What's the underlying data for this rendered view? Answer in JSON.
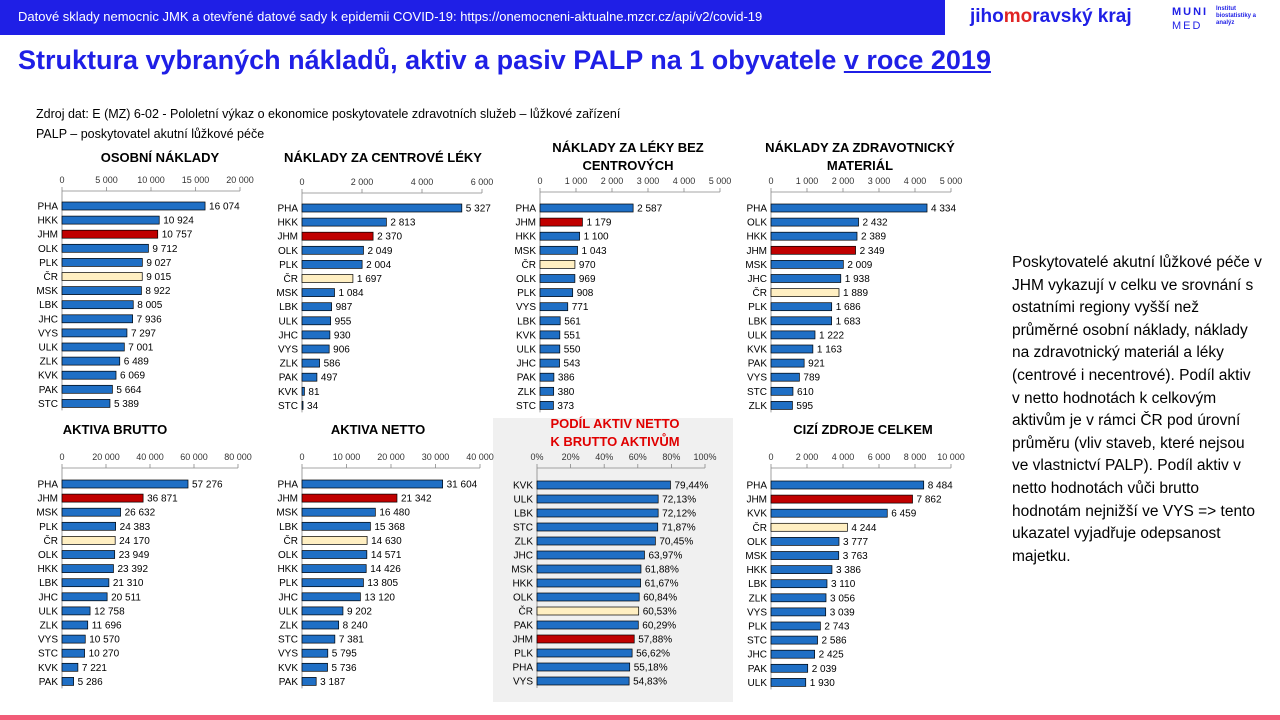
{
  "header": {
    "banner": "Datové sklady nemocnic JMK a otevřené datové sady k epidemii COVID-19: https://onemocneni-aktualne.mzcr.cz/api/v2/covid-19",
    "logo_jmk_a": "jiho",
    "logo_jmk_b": "mo",
    "logo_jmk_c": "ravský kraj",
    "logo_muni_top": "MUNI",
    "logo_muni_bottom": "MED",
    "logo_muni_note": "Institut biostatistiky a analýz"
  },
  "title": {
    "main": "Struktura vybraných nákladů, aktiv a pasiv PALP na 1 obyvatele ",
    "underlined": "v roce 2019"
  },
  "source": {
    "line1": "Zdroj dat: E (MZ) 6-02 - Pololetní výkaz o ekonomice poskytovatele zdravotních služeb – lůžkové zařízení",
    "line2": "PALP – poskytovatel akutní lůžkové péče"
  },
  "side_note": "Poskytovatelé akutní lůžkové péče v JHM vykazují v celku ve srovnání s ostatními regiony vyšší než průměrné osobní náklady, náklady na zdravotnický materiál a léky (centrové i necentrové). Podíl aktiv v netto hodnotách k celkovým aktivům je v rámci ČR pod úrovní průměru (vliv staveb, které nejsou ve vlastnictví PALP). Podíl aktiv v netto hodnotách vůči brutto hodnotám nejnižší ve VYS => tento ukazatel vyjadřuje odepsanost majetku.",
  "colors": {
    "default": "#1f6fc5",
    "highlight": "#c00000",
    "reference": "#ffefc2",
    "title_blue": "#1f1fe6",
    "title_red": "#e00000"
  },
  "chart_data": [
    {
      "type": "bar",
      "title": [
        "OSOBNÍ NÁKLADY"
      ],
      "xlim": [
        0,
        20000
      ],
      "ticks": [
        "0",
        "5 000",
        "10 000",
        "15 000",
        "20 000"
      ],
      "categories": [
        "PHA",
        "HKK",
        "JHM",
        "OLK",
        "PLK",
        "ČR",
        "MSK",
        "LBK",
        "JHC",
        "VYS",
        "ULK",
        "ZLK",
        "KVK",
        "PAK",
        "STC"
      ],
      "values": [
        16074,
        10924,
        10757,
        9712,
        9027,
        9015,
        8922,
        8005,
        7936,
        7297,
        7001,
        6489,
        6069,
        5664,
        5389
      ],
      "labels": [
        "16 074",
        "10 924",
        "10 757",
        "9 712",
        "9 027",
        "9 015",
        "8 922",
        "8 005",
        "7 936",
        "7 297",
        "7 001",
        "6 489",
        "6 069",
        "5 664",
        "5 389"
      ],
      "highlight": "JHM",
      "reference": "ČR"
    },
    {
      "type": "bar",
      "title": [
        "NÁKLADY ZA CENTROVÉ LÉKY"
      ],
      "xlim": [
        0,
        6000
      ],
      "ticks": [
        "0",
        "2 000",
        "4 000",
        "6 000"
      ],
      "categories": [
        "PHA",
        "HKK",
        "JHM",
        "OLK",
        "PLK",
        "ČR",
        "MSK",
        "LBK",
        "ULK",
        "JHC",
        "VYS",
        "ZLK",
        "PAK",
        "KVK",
        "STC"
      ],
      "values": [
        5327,
        2813,
        2370,
        2049,
        2004,
        1697,
        1084,
        987,
        955,
        930,
        906,
        586,
        497,
        81,
        34
      ],
      "labels": [
        "5 327",
        "2 813",
        "2 370",
        "2 049",
        "2 004",
        "1 697",
        "1 084",
        "987",
        "955",
        "930",
        "906",
        "586",
        "497",
        "81",
        "34"
      ],
      "highlight": "JHM",
      "reference": "ČR"
    },
    {
      "type": "bar",
      "title": [
        "NÁKLADY ZA LÉKY BEZ",
        "CENTROVÝCH"
      ],
      "xlim": [
        0,
        5000
      ],
      "ticks": [
        "0",
        "1 000",
        "2 000",
        "3 000",
        "4 000",
        "5 000"
      ],
      "categories": [
        "PHA",
        "JHM",
        "HKK",
        "MSK",
        "ČR",
        "OLK",
        "PLK",
        "VYS",
        "LBK",
        "KVK",
        "ULK",
        "JHC",
        "PAK",
        "ZLK",
        "STC"
      ],
      "values": [
        2587,
        1179,
        1100,
        1043,
        970,
        969,
        908,
        771,
        561,
        551,
        550,
        543,
        386,
        380,
        373
      ],
      "labels": [
        "2 587",
        "1 179",
        "1 100",
        "1 043",
        "970",
        "969",
        "908",
        "771",
        "561",
        "551",
        "550",
        "543",
        "386",
        "380",
        "373"
      ],
      "highlight": "JHM",
      "reference": "ČR"
    },
    {
      "type": "bar",
      "title": [
        "NÁKLADY ZA ZDRAVOTNICKÝ",
        "MATERIÁL"
      ],
      "xlim": [
        0,
        5000
      ],
      "ticks": [
        "0",
        "1 000",
        "2 000",
        "3 000",
        "4 000",
        "5 000"
      ],
      "categories": [
        "PHA",
        "OLK",
        "HKK",
        "JHM",
        "MSK",
        "JHC",
        "ČR",
        "PLK",
        "LBK",
        "ULK",
        "KVK",
        "PAK",
        "VYS",
        "STC",
        "ZLK"
      ],
      "values": [
        4334,
        2432,
        2389,
        2349,
        2009,
        1938,
        1889,
        1686,
        1683,
        1222,
        1163,
        921,
        789,
        610,
        595
      ],
      "labels": [
        "4 334",
        "2 432",
        "2 389",
        "2 349",
        "2 009",
        "1 938",
        "1 889",
        "1 686",
        "1 683",
        "1 222",
        "1 163",
        "921",
        "789",
        "610",
        "595"
      ],
      "highlight": "JHM",
      "reference": "ČR"
    },
    {
      "type": "bar",
      "title": [
        "AKTIVA BRUTTO"
      ],
      "xlim": [
        0,
        80000
      ],
      "ticks": [
        "0",
        "20 000",
        "40 000",
        "60 000",
        "80 000"
      ],
      "categories": [
        "PHA",
        "JHM",
        "MSK",
        "PLK",
        "ČR",
        "OLK",
        "HKK",
        "LBK",
        "JHC",
        "ULK",
        "ZLK",
        "VYS",
        "STC",
        "KVK",
        "PAK"
      ],
      "values": [
        57276,
        36871,
        26632,
        24383,
        24170,
        23949,
        23392,
        21310,
        20511,
        12758,
        11696,
        10570,
        10270,
        7221,
        5286
      ],
      "labels": [
        "57 276",
        "36 871",
        "26 632",
        "24 383",
        "24 170",
        "23 949",
        "23 392",
        "21 310",
        "20 511",
        "12 758",
        "11 696",
        "10 570",
        "10 270",
        "7 221",
        "5 286"
      ],
      "highlight": "JHM",
      "reference": "ČR"
    },
    {
      "type": "bar",
      "title": [
        "AKTIVA NETTO"
      ],
      "xlim": [
        0,
        40000
      ],
      "ticks": [
        "0",
        "10 000",
        "20 000",
        "30 000",
        "40 000"
      ],
      "categories": [
        "PHA",
        "JHM",
        "MSK",
        "LBK",
        "ČR",
        "OLK",
        "HKK",
        "PLK",
        "JHC",
        "ULK",
        "ZLK",
        "STC",
        "VYS",
        "KVK",
        "PAK"
      ],
      "values": [
        31604,
        21342,
        16480,
        15368,
        14630,
        14571,
        14426,
        13805,
        13120,
        9202,
        8240,
        7381,
        5795,
        5736,
        3187
      ],
      "labels": [
        "31 604",
        "21 342",
        "16 480",
        "15 368",
        "14 630",
        "14 571",
        "14 426",
        "13 805",
        "13 120",
        "9 202",
        "8 240",
        "7 381",
        "5 795",
        "5 736",
        "3 187"
      ],
      "highlight": "JHM",
      "reference": "ČR"
    },
    {
      "type": "bar",
      "title": [
        "PODÍL AKTIV NETTO",
        "K BRUTTO AKTIVŮM"
      ],
      "title_red": true,
      "xlim": [
        0,
        100
      ],
      "ticks": [
        "0%",
        "20%",
        "40%",
        "60%",
        "80%",
        "100%"
      ],
      "categories": [
        "KVK",
        "ULK",
        "LBK",
        "STC",
        "ZLK",
        "JHC",
        "MSK",
        "HKK",
        "OLK",
        "ČR",
        "PAK",
        "JHM",
        "PLK",
        "PHA",
        "VYS"
      ],
      "values": [
        79.44,
        72.13,
        72.12,
        71.87,
        70.45,
        63.97,
        61.88,
        61.67,
        60.84,
        60.53,
        60.29,
        57.88,
        56.62,
        55.18,
        54.83
      ],
      "labels": [
        "79,44%",
        "72,13%",
        "72,12%",
        "71,87%",
        "70,45%",
        "63,97%",
        "61,88%",
        "61,67%",
        "60,84%",
        "60,53%",
        "60,29%",
        "57,88%",
        "56,62%",
        "55,18%",
        "54,83%"
      ],
      "highlight": "JHM",
      "reference": "ČR"
    },
    {
      "type": "bar",
      "title": [
        "CIZÍ ZDROJE CELKEM"
      ],
      "xlim": [
        0,
        10000
      ],
      "ticks": [
        "0",
        "2 000",
        "4 000",
        "6 000",
        "8 000",
        "10 000"
      ],
      "categories": [
        "PHA",
        "JHM",
        "KVK",
        "ČR",
        "OLK",
        "MSK",
        "HKK",
        "LBK",
        "ZLK",
        "VYS",
        "PLK",
        "STC",
        "JHC",
        "PAK",
        "ULK"
      ],
      "values": [
        8484,
        7862,
        6459,
        4244,
        3777,
        3763,
        3386,
        3110,
        3056,
        3039,
        2743,
        2586,
        2425,
        2039,
        1930
      ],
      "labels": [
        "8 484",
        "7 862",
        "6 459",
        "4 244",
        "3 777",
        "3 763",
        "3 386",
        "3 110",
        "3 056",
        "3 039",
        "2 743",
        "2 586",
        "2 425",
        "2 039",
        "1 930"
      ],
      "highlight": "JHM",
      "reference": "ČR"
    }
  ]
}
